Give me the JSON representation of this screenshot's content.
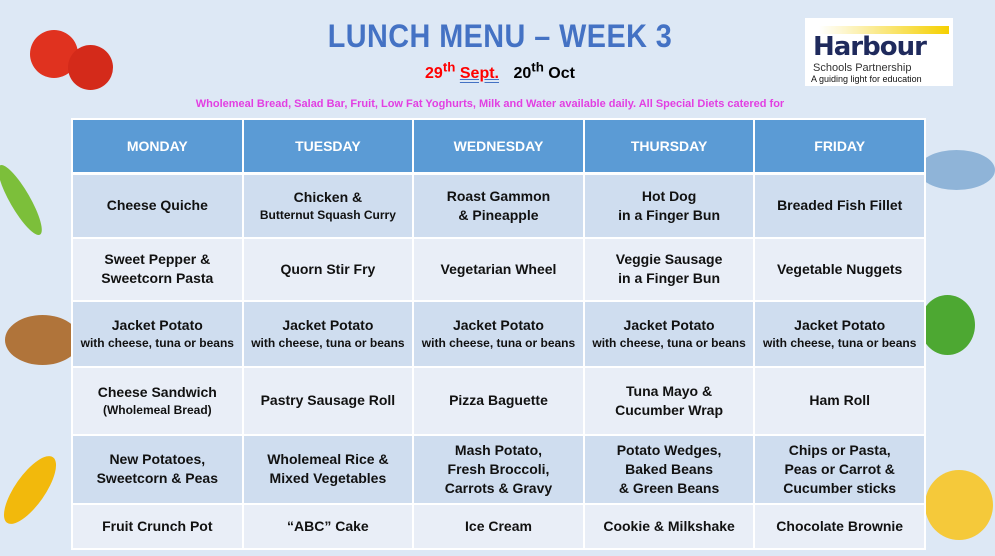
{
  "header": {
    "title": "LUNCH MENU – WEEK 3",
    "date_start_day": "29",
    "date_start_sup": "th",
    "date_start_month": "Sept.",
    "date_end_day": "20",
    "date_end_sup": "th",
    "date_end_month": "Oct",
    "info": "Wholemeal Bread, Salad Bar, Fruit, Low Fat Yoghurts, Milk and Water available daily.  All Special Diets catered for"
  },
  "logo": {
    "name": "Harbour",
    "line1": "Schools Partnership",
    "line2": "A guiding light for education"
  },
  "colors": {
    "header": "#5b9bd5",
    "title": "#4472c4",
    "info": "#e23fe2"
  },
  "menu": {
    "days": [
      "MONDAY",
      "TUESDAY",
      "WEDNESDAY",
      "THURSDAY",
      "FRIDAY"
    ],
    "rows": [
      [
        [
          {
            "t": "Cheese Quiche"
          }
        ],
        [
          {
            "t": "Chicken &"
          },
          {
            "t": "Butternut Squash Curry",
            "s": 1
          }
        ],
        [
          {
            "t": "Roast Gammon"
          },
          {
            "t": "& Pineapple"
          }
        ],
        [
          {
            "t": "Hot Dog"
          },
          {
            "t": "in a Finger Bun"
          }
        ],
        [
          {
            "t": "Breaded Fish Fillet"
          }
        ]
      ],
      [
        [
          {
            "t": "Sweet Pepper &"
          },
          {
            "t": "Sweetcorn Pasta"
          }
        ],
        [
          {
            "t": "Quorn Stir Fry"
          }
        ],
        [
          {
            "t": "Vegetarian Wheel"
          }
        ],
        [
          {
            "t": "Veggie Sausage"
          },
          {
            "t": "in a Finger Bun"
          }
        ],
        [
          {
            "t": "Vegetable Nuggets"
          }
        ]
      ],
      [
        [
          {
            "t": "Jacket Potato"
          },
          {
            "t": "with cheese, tuna or beans",
            "s": 1
          }
        ],
        [
          {
            "t": "Jacket Potato"
          },
          {
            "t": "with cheese, tuna or beans",
            "s": 1
          }
        ],
        [
          {
            "t": "Jacket Potato"
          },
          {
            "t": "with cheese, tuna or beans",
            "s": 1
          }
        ],
        [
          {
            "t": "Jacket Potato"
          },
          {
            "t": "with cheese, tuna or beans",
            "s": 1
          }
        ],
        [
          {
            "t": "Jacket Potato"
          },
          {
            "t": "with cheese, tuna or beans",
            "s": 1
          }
        ]
      ],
      [
        [
          {
            "t": "Cheese Sandwich"
          },
          {
            "t": "(Wholemeal Bread)",
            "s": 1
          }
        ],
        [
          {
            "t": "Pastry Sausage Roll"
          }
        ],
        [
          {
            "t": "Pizza Baguette"
          }
        ],
        [
          {
            "t": "Tuna Mayo &"
          },
          {
            "t": "Cucumber Wrap"
          }
        ],
        [
          {
            "t": "Ham Roll"
          }
        ]
      ],
      [
        [
          {
            "t": "New Potatoes,"
          },
          {
            "t": "Sweetcorn & Peas"
          }
        ],
        [
          {
            "t": "Wholemeal Rice &"
          },
          {
            "t": "Mixed Vegetables"
          }
        ],
        [
          {
            "t": "Mash Potato,"
          },
          {
            "t": "Fresh Broccoli,"
          },
          {
            "t": "Carrots & Gravy"
          }
        ],
        [
          {
            "t": "Potato Wedges,"
          },
          {
            "t": "Baked Beans"
          },
          {
            "t": "& Green Beans"
          }
        ],
        [
          {
            "t": "Chips or Pasta,"
          },
          {
            "t": "Peas or Carrot &"
          },
          {
            "t": "Cucumber sticks"
          }
        ]
      ],
      [
        [
          {
            "t": "Fruit Crunch Pot"
          }
        ],
        [
          {
            "t": "“ABC” Cake"
          }
        ],
        [
          {
            "t": "Ice Cream"
          }
        ],
        [
          {
            "t": "Cookie & Milkshake"
          }
        ],
        [
          {
            "t": "Chocolate Brownie"
          }
        ]
      ]
    ]
  }
}
